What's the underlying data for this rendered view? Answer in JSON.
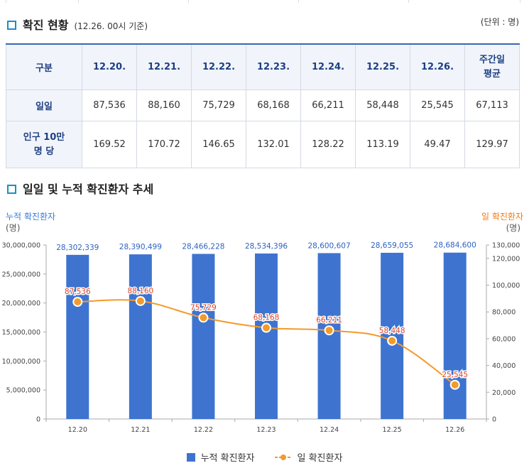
{
  "section1": {
    "title": "확진 현황",
    "subtitle": "(12.26. 00시 기준)",
    "unit": "(단위 : 명)"
  },
  "table": {
    "headers": [
      "구분",
      "12.20.",
      "12.21.",
      "12.22.",
      "12.23.",
      "12.24.",
      "12.25.",
      "12.26.",
      "주간일\n평균"
    ],
    "rows": [
      {
        "label": "일일",
        "values": [
          "87,536",
          "88,160",
          "75,729",
          "68,168",
          "66,211",
          "58,448",
          "25,545",
          "67,113"
        ]
      },
      {
        "label": "인구 10만\n명 당",
        "values": [
          "169.52",
          "170.72",
          "146.65",
          "132.01",
          "128.22",
          "113.19",
          "49.47",
          "129.97"
        ]
      }
    ]
  },
  "section2": {
    "title": "일일 및 누적 확진환자 추세"
  },
  "chart_data": {
    "type": "bar",
    "categories": [
      "12.20",
      "12.21",
      "12.22",
      "12.23",
      "12.24",
      "12.25",
      "12.26"
    ],
    "series": [
      {
        "name": "누적 확진환자",
        "type": "bar",
        "axis": "left",
        "color": "#3e74d0",
        "values": [
          28302339,
          28390499,
          28466228,
          28534396,
          28600607,
          28659055,
          28684600
        ],
        "labels": [
          "28,302,339",
          "28,390,499",
          "28,466,228",
          "28,534,396",
          "28,600,607",
          "28,659,055",
          "28,684,600"
        ]
      },
      {
        "name": "일 확진환자",
        "type": "line",
        "axis": "right",
        "color": "#f39a2c",
        "values": [
          87536,
          88160,
          75729,
          68168,
          66211,
          58448,
          25545
        ],
        "labels": [
          "87,536",
          "88,160",
          "75,729",
          "68,168",
          "66,211",
          "58,448",
          "25,545"
        ]
      }
    ],
    "y_left": {
      "title": "누적 확진환자",
      "unit": "(명)",
      "min": 0,
      "max": 30000000,
      "ticks": [
        "30,000,000",
        "25,000,000",
        "20,000,000",
        "15,000,000",
        "10,000,000",
        "5,000,000",
        "0"
      ]
    },
    "y_right": {
      "title": "일 확진환자",
      "unit": "(명)",
      "min": 0,
      "max": 130000,
      "ticks": [
        "130,000",
        "120,000",
        "100,000",
        "80,000",
        "60,000",
        "40,000",
        "20,000",
        "0"
      ]
    },
    "legend": "bottom"
  }
}
